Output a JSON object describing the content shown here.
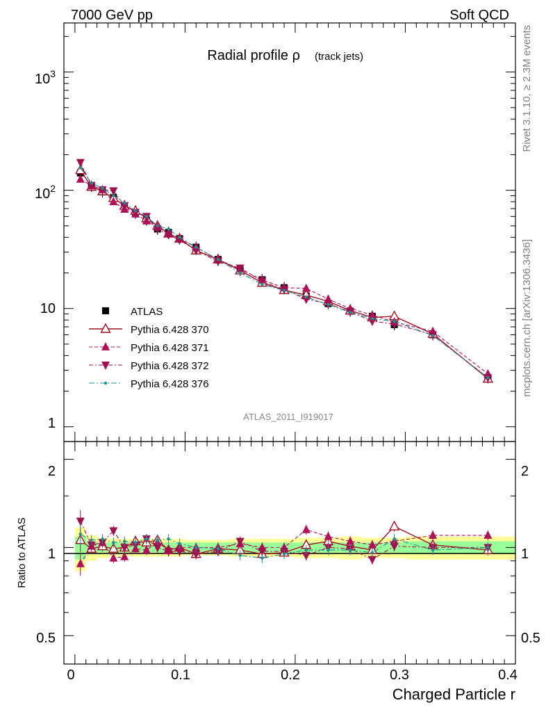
{
  "header": {
    "left": "7000 GeV pp",
    "right": "Soft QCD"
  },
  "side_labels": {
    "rivet": "Rivet 3.1.10, ≥ 2.3M events",
    "mcplots": "mcplots.cern.ch [arXiv:1306.3436]"
  },
  "colors": {
    "ATLAS": "#000000",
    "Pythia 6.428 370": "#a01020",
    "Pythia 6.428 371": "#b0105a",
    "Pythia 6.428 372": "#a01050",
    "Pythia 6.428 376": "#209090",
    "band_outer": "#ffff99",
    "band_inner": "#99ff99"
  },
  "chart_data": [
    {
      "type": "line",
      "title": "Radial profile ρ",
      "subtitle": "(track jets)",
      "watermark": "ATLAS_2011_I919017",
      "xlabel": "",
      "ylabel": "",
      "xlim": [
        -0.01,
        0.4
      ],
      "ylim": [
        0.75,
        2600
      ],
      "yscale": "log",
      "yticks": [
        "1",
        "10",
        "10^2",
        "10^3"
      ],
      "legend_position": "middle-left",
      "x": [
        0.005,
        0.015,
        0.025,
        0.035,
        0.045,
        0.055,
        0.065,
        0.075,
        0.085,
        0.095,
        0.11,
        0.13,
        0.15,
        0.17,
        0.19,
        0.21,
        0.23,
        0.25,
        0.27,
        0.29,
        0.325,
        0.375
      ],
      "series": [
        {
          "name": "ATLAS",
          "marker": "square",
          "values": [
            140,
            108,
            97,
            87,
            74,
            64,
            56,
            47,
            44,
            39,
            33,
            26,
            21,
            17.5,
            15,
            12.8,
            11,
            9.5,
            8.6,
            7.3,
            6.0,
            2.6
          ]
        },
        {
          "name": "Pythia 6.428 370",
          "marker": "open-triangle",
          "values": [
            148,
            107,
            98,
            86,
            74,
            67,
            58,
            50,
            43,
            39,
            31,
            26,
            21,
            16.5,
            14.3,
            13.0,
            11.5,
            9.6,
            8.4,
            8.6,
            6.1,
            2.55
          ]
        },
        {
          "name": "Pythia 6.428 371",
          "marker": "triangle",
          "values": [
            124,
            109,
            101,
            80,
            69,
            63,
            55,
            49,
            43,
            39,
            33,
            26,
            21.5,
            17.5,
            15,
            14.8,
            12,
            10,
            8.8,
            7.7,
            6.4,
            2.8
          ]
        },
        {
          "name": "Pythia 6.428 372",
          "marker": "triangle-down",
          "values": [
            172,
            110,
            101,
            99,
            74,
            65,
            60,
            47,
            42,
            38,
            31,
            25,
            22,
            17,
            14.5,
            12,
            11,
            9.4,
            7.8,
            7.4,
            6.0,
            2.6
          ]
        },
        {
          "name": "Pythia 6.428 376",
          "marker": "dot",
          "values": [
            155,
            115,
            104,
            90,
            78,
            67,
            60,
            50,
            47,
            40,
            33,
            26,
            20,
            16,
            14.2,
            12.5,
            10.8,
            9.3,
            8.2,
            7.8,
            5.9,
            2.6
          ]
        }
      ]
    },
    {
      "type": "line",
      "title": "",
      "xlabel": "Charged Particle r",
      "ylabel": "Ratio to ATLAS",
      "xlim": [
        -0.01,
        0.4
      ],
      "ylim": [
        0.4,
        2.3
      ],
      "yscale": "log",
      "xticks": [
        "0",
        "0.1",
        "0.2",
        "0.3",
        "0.4"
      ],
      "yticks": [
        "0.5",
        "1",
        "2"
      ],
      "bands": {
        "edges": [
          0,
          0.01,
          0.02,
          0.03,
          0.04,
          0.05,
          0.06,
          0.07,
          0.08,
          0.09,
          0.1,
          0.12,
          0.14,
          0.16,
          0.18,
          0.2,
          0.22,
          0.24,
          0.26,
          0.28,
          0.3,
          0.35,
          0.4
        ],
        "outer": [
          0.17,
          0.1,
          0.08,
          0.07,
          0.07,
          0.07,
          0.07,
          0.07,
          0.07,
          0.07,
          0.06,
          0.06,
          0.07,
          0.07,
          0.07,
          0.08,
          0.08,
          0.09,
          0.08,
          0.08,
          0.09,
          0.09
        ],
        "inner": [
          0.09,
          0.05,
          0.04,
          0.04,
          0.04,
          0.04,
          0.04,
          0.04,
          0.04,
          0.04,
          0.04,
          0.04,
          0.04,
          0.04,
          0.04,
          0.04,
          0.04,
          0.04,
          0.04,
          0.04,
          0.05,
          0.05
        ]
      },
      "x": [
        0.005,
        0.015,
        0.025,
        0.035,
        0.045,
        0.055,
        0.065,
        0.075,
        0.085,
        0.095,
        0.11,
        0.13,
        0.15,
        0.17,
        0.19,
        0.21,
        0.23,
        0.25,
        0.27,
        0.29,
        0.325,
        0.375
      ],
      "series": [
        {
          "name": "Pythia 6.428 370",
          "marker": "open-triangle",
          "values": [
            1.06,
            0.99,
            1.01,
            0.99,
            1.0,
            1.05,
            1.04,
            1.06,
            0.98,
            1.0,
            0.95,
            0.99,
            0.98,
            0.95,
            0.96,
            1.02,
            1.05,
            1.01,
            0.98,
            1.18,
            1.02,
            0.98
          ]
        },
        {
          "name": "Pythia 6.428 371",
          "marker": "triangle",
          "values": [
            0.88,
            1.01,
            1.04,
            0.92,
            0.93,
            0.99,
            0.98,
            1.04,
            0.98,
            1.0,
            1.0,
            1.0,
            1.03,
            1.0,
            1.0,
            1.15,
            1.09,
            1.05,
            1.02,
            1.05,
            1.1,
            1.1
          ]
        },
        {
          "name": "Pythia 6.428 372",
          "marker": "triangle-down",
          "values": [
            1.23,
            1.02,
            1.04,
            1.14,
            1.0,
            1.02,
            1.07,
            1.0,
            0.97,
            0.97,
            0.95,
            0.97,
            1.05,
            0.97,
            0.97,
            0.94,
            1.0,
            0.99,
            0.91,
            1.01,
            1.0,
            1.0
          ]
        },
        {
          "name": "Pythia 6.428 376",
          "marker": "dot",
          "values": [
            1.11,
            1.06,
            1.07,
            1.04,
            1.05,
            1.04,
            1.07,
            1.06,
            1.07,
            1.03,
            1.0,
            0.99,
            0.94,
            0.92,
            0.95,
            0.98,
            0.98,
            0.98,
            0.96,
            1.07,
            0.98,
            1.0
          ]
        }
      ]
    }
  ]
}
